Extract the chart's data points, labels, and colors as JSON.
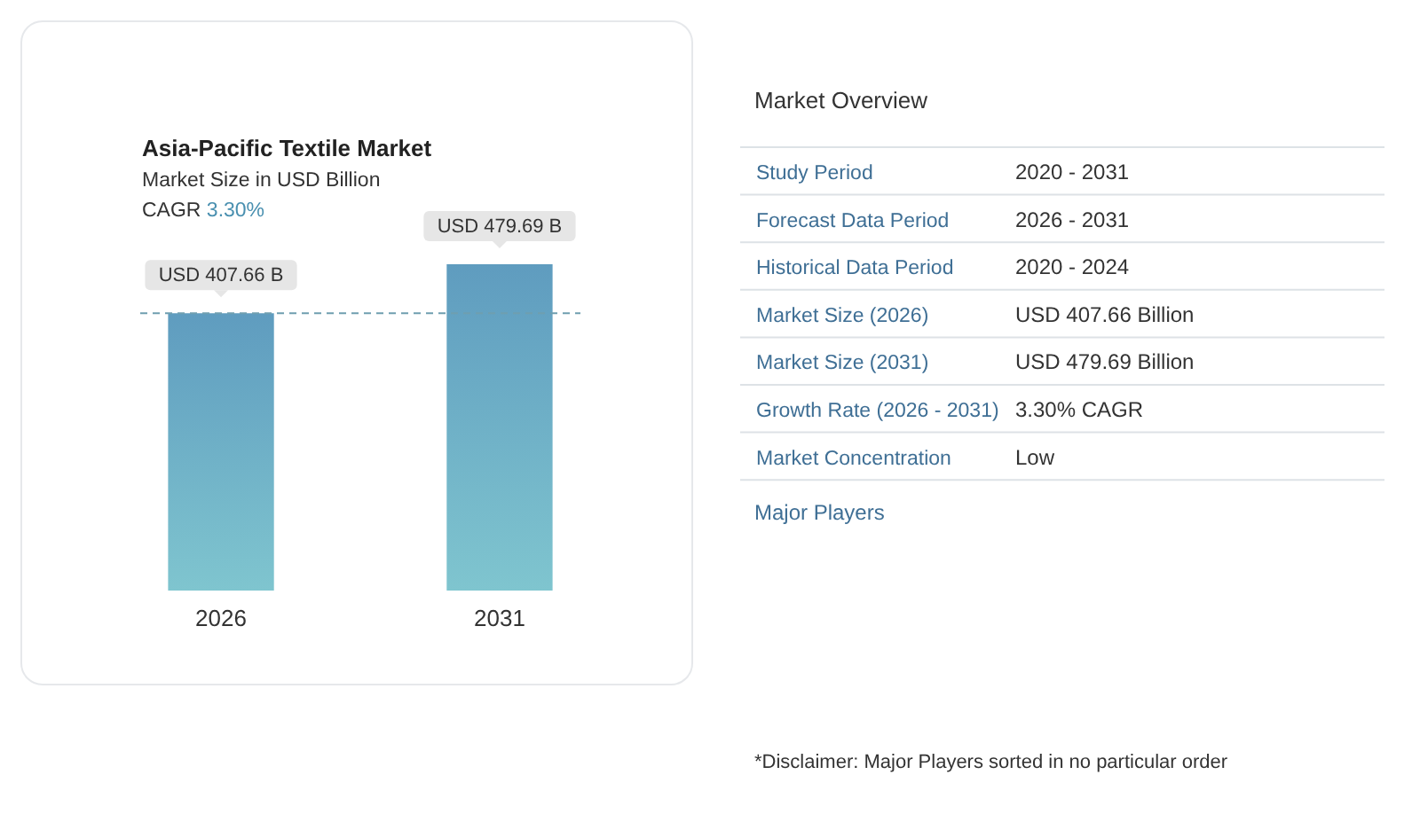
{
  "chart_data": [
    {
      "type": "bar",
      "title": "Asia-Pacific Textile Market",
      "subtitle": "Market Size in USD Billion",
      "annotations": [
        "CAGR 3.30%"
      ],
      "categories": [
        "2026",
        "2031"
      ],
      "values": [
        407.66,
        479.69
      ],
      "value_labels": [
        "USD 407.66 B",
        "USD 479.69 B"
      ],
      "color": "#5f9cbf",
      "ref_lines": [
        {
          "axis": "y",
          "value": 407.66,
          "line_style": "dashed",
          "color": "#6f9fb0"
        }
      ]
    },
    {
      "type": "other",
      "title": "Market Overview",
      "categories": [
        "Study Period",
        "Forecast Data Period",
        "Historical Data Period",
        "Market Size (2026)",
        "Market Size (2031)",
        "Growth Rate (2026 - 2031)",
        "Market Concentration"
      ],
      "value_labels": [
        "2020 - 2031",
        "2026 - 2031",
        "2020 - 2024",
        "USD 407.66 Billion",
        "USD 479.69 Billion",
        "3.30% CAGR",
        "Low"
      ],
      "annotations": [
        "Major Players",
        "*Disclaimer: Major Players sorted in no particular order"
      ]
    }
  ]
}
